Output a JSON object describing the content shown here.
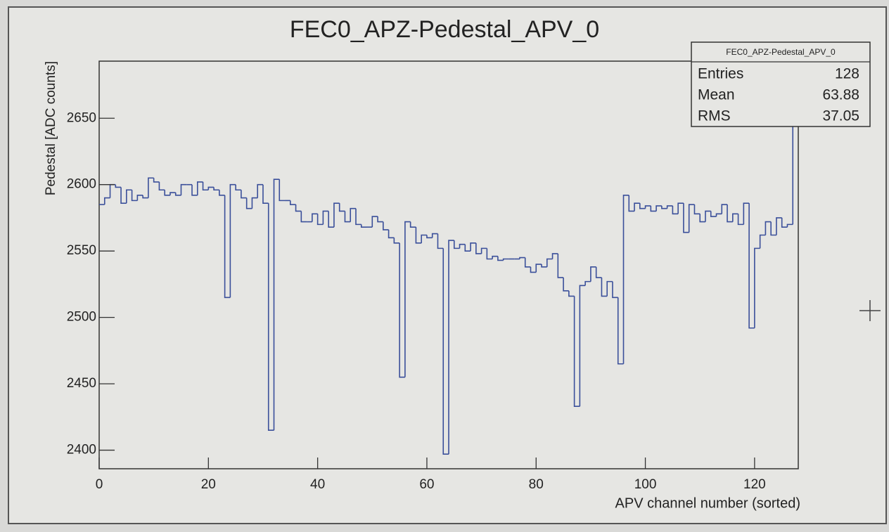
{
  "chart_data": {
    "type": "histogram",
    "title": "FEC0_APZ-Pedestal_APV_0",
    "x_label": "APV channel number (sorted)",
    "y_label": "Pedestal [ADC counts]",
    "color": "#3a4f9a",
    "bins": [
      0,
      1,
      2,
      3,
      4,
      5,
      6,
      7,
      8,
      9,
      10,
      11,
      12,
      13,
      14,
      15,
      16,
      17,
      18,
      19,
      20,
      21,
      22,
      23,
      24,
      25,
      26,
      27,
      28,
      29,
      30,
      31,
      32,
      33,
      34,
      35,
      36,
      37,
      38,
      39,
      40,
      41,
      42,
      43,
      44,
      45,
      46,
      47,
      48,
      49,
      50,
      51,
      52,
      53,
      54,
      55,
      56,
      57,
      58,
      59,
      60,
      61,
      62,
      63,
      64,
      65,
      66,
      67,
      68,
      69,
      70,
      71,
      72,
      73,
      74,
      75,
      76,
      77,
      78,
      79,
      80,
      81,
      82,
      83,
      84,
      85,
      86,
      87,
      88,
      89,
      90,
      91,
      92,
      93,
      94,
      95,
      96,
      97,
      98,
      99,
      100,
      101,
      102,
      103,
      104,
      105,
      106,
      107,
      108,
      109,
      110,
      111,
      112,
      113,
      114,
      115,
      116,
      117,
      118,
      119,
      120,
      121,
      122,
      123,
      124,
      125,
      126,
      127,
      128
    ],
    "values": [
      2585,
      2590,
      2600,
      2598,
      2586,
      2596,
      2588,
      2592,
      2590,
      2605,
      2602,
      2596,
      2592,
      2594,
      2592,
      2600,
      2600,
      2592,
      2602,
      2596,
      2598,
      2596,
      2592,
      2515,
      2600,
      2596,
      2590,
      2582,
      2590,
      2600,
      2586,
      2415,
      2604,
      2588,
      2588,
      2585,
      2580,
      2572,
      2572,
      2578,
      2570,
      2580,
      2568,
      2586,
      2580,
      2572,
      2582,
      2570,
      2568,
      2568,
      2576,
      2572,
      2566,
      2560,
      2556,
      2455,
      2572,
      2568,
      2556,
      2562,
      2560,
      2563,
      2552,
      2397,
      2558,
      2552,
      2555,
      2550,
      2556,
      2548,
      2552,
      2544,
      2546,
      2543,
      2544,
      2544,
      2544,
      2545,
      2538,
      2534,
      2540,
      2538,
      2544,
      2548,
      2530,
      2520,
      2516,
      2433,
      2524,
      2527,
      2538,
      2530,
      2516,
      2527,
      2515,
      2465,
      2592,
      2580,
      2586,
      2582,
      2584,
      2580,
      2584,
      2582,
      2584,
      2578,
      2586,
      2564,
      2585,
      2578,
      2572,
      2580,
      2576,
      2578,
      2585,
      2572,
      2578,
      2570,
      2586,
      2492,
      2552,
      2562,
      2572,
      2562,
      2575,
      2568,
      2570,
      2685
    ],
    "xlim": [
      0,
      128
    ],
    "xticks": [
      0,
      20,
      40,
      60,
      80,
      100,
      120
    ],
    "ylim": [
      2386,
      2693
    ],
    "yticks": [
      2400,
      2450,
      2500,
      2550,
      2600,
      2650
    ],
    "stats": {
      "title": "FEC0_APZ-Pedestal_APV_0",
      "rows": [
        {
          "label": "Entries",
          "value": 128
        },
        {
          "label": "Mean",
          "value": 63.88
        },
        {
          "label": "RMS",
          "value": 37.05
        }
      ]
    }
  }
}
